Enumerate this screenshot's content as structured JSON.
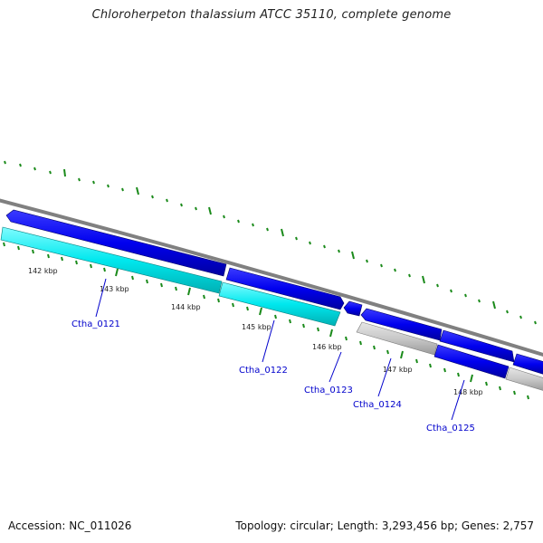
{
  "title": "Chloroherpeton thalassium ATCC 35110, complete genome",
  "accession_text": "Accession: NC_011026",
  "summary_text": "Topology: circular; Length: 3,293,456 bp; Genes: 2,757",
  "kbp_labels": [
    "142 kbp",
    "143 kbp",
    "144 kbp",
    "145 kbp",
    "146 kbp",
    "147 kbp",
    "148 kbp"
  ],
  "gene_labels": [
    "Ctha_0121",
    "Ctha_0122",
    "Ctha_0123",
    "Ctha_0124",
    "Ctha_0125"
  ],
  "colors": {
    "forward_gene": "#0000ee",
    "reverse_gene": "#00e5ee",
    "pseudo_gene": "#c8c8c8",
    "backbone": "#808080",
    "tick": "#1a8a1a",
    "label": "#0000cc"
  }
}
